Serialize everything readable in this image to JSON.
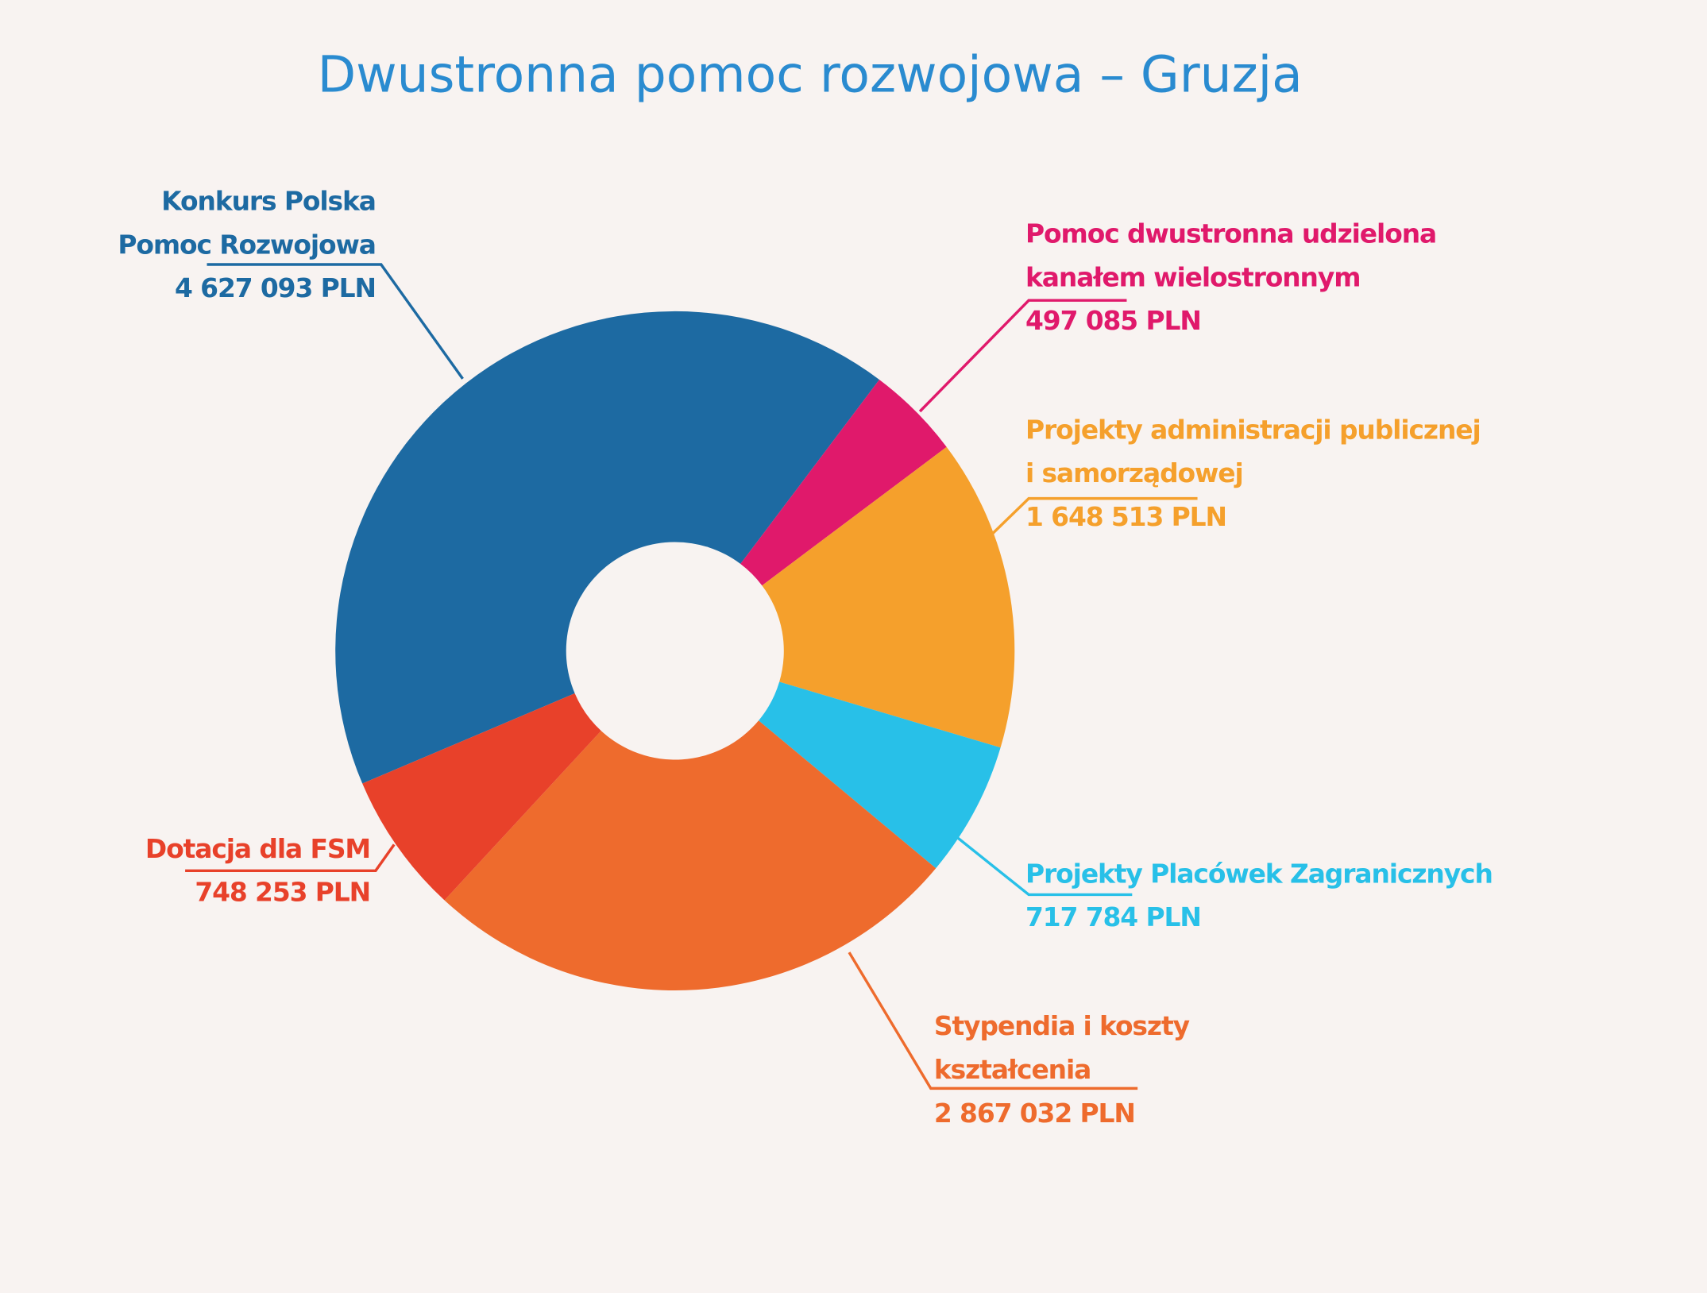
{
  "chart_data": {
    "type": "donut",
    "title": "Dwustronna pomoc rozwojowa – Gruzja",
    "categories": [
      "Konkurs Polska Pomoc Rozwojowa",
      "Pomoc dwustronna udzielona kanałem wielostronnym",
      "Projekty administracji publicznej i samorządowej",
      "Projekty Placówek Zagranicznych",
      "Stypendia i koszty kształcenia",
      "Dotacja dla FSM"
    ],
    "values": [
      4627093,
      497085,
      1648513,
      717784,
      2867032,
      748253
    ],
    "value_labels": [
      "4 627 093 PLN",
      "497 085 PLN",
      "1 648 513 PLN",
      "717 784 PLN",
      "2 867 032 PLN",
      "748 253 PLN"
    ],
    "colors": [
      "#1d6aa2",
      "#e0196b",
      "#f5a02c",
      "#28c0e8",
      "#ee6b2d",
      "#e8412a"
    ]
  }
}
